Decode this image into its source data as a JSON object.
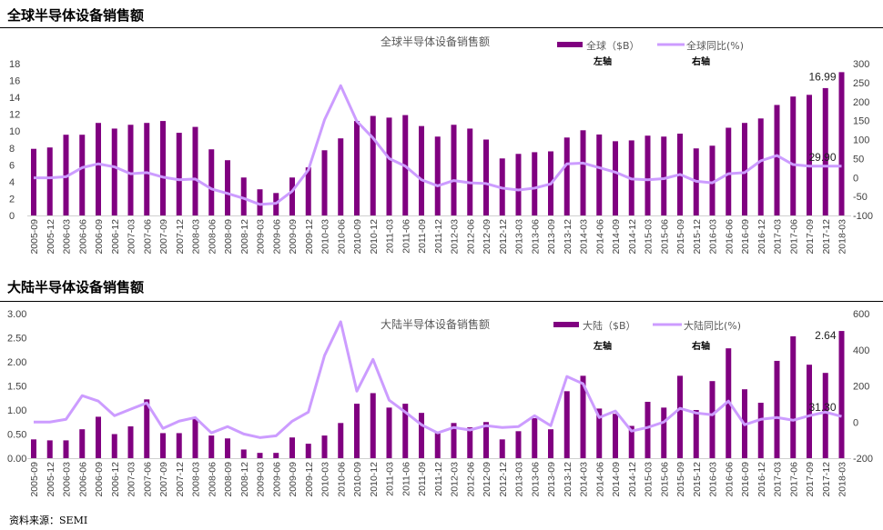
{
  "colors": {
    "bar": "#800080",
    "line": "#cc9cff",
    "axis": "#d0d0d0",
    "text": "#404040"
  },
  "source": "资料来源：SEMI",
  "chart_data": [
    {
      "type": "bar+line",
      "section_title": "全球半导体设备销售额",
      "title": "全球半导体设备销售额",
      "legend": {
        "bar": "全球（$B）",
        "line": "全球同比(%)",
        "placement": "top-right"
      },
      "axis_notes": {
        "left": "左轴",
        "right": "右轴"
      },
      "categories": [
        "2005-09",
        "2005-12",
        "2006-03",
        "2006-06",
        "2006-09",
        "2006-12",
        "2007-03",
        "2007-06",
        "2007-09",
        "2007-12",
        "2008-03",
        "2008-06",
        "2008-09",
        "2008-12",
        "2009-03",
        "2009-06",
        "2009-09",
        "2009-12",
        "2010-03",
        "2010-06",
        "2010-09",
        "2010-12",
        "2011-03",
        "2011-06",
        "2011-09",
        "2011-12",
        "2012-03",
        "2012-06",
        "2012-09",
        "2012-12",
        "2013-03",
        "2013-06",
        "2013-09",
        "2013-12",
        "2014-03",
        "2014-06",
        "2014-09",
        "2014-12",
        "2015-03",
        "2015-06",
        "2015-09",
        "2015-12",
        "2016-03",
        "2016-06",
        "2016-09",
        "2016-12",
        "2017-03",
        "2017-06",
        "2017-09",
        "2017-12",
        "2018-03"
      ],
      "bar_values": [
        7.9,
        8.06,
        9.57,
        9.57,
        10.97,
        10.3,
        10.75,
        10.97,
        11.2,
        9.8,
        10.5,
        7.84,
        6.55,
        4.5,
        3.1,
        2.66,
        4.5,
        5.7,
        7.73,
        9.14,
        11.2,
        11.8,
        11.6,
        11.9,
        10.6,
        9.35,
        10.75,
        10.3,
        9.0,
        6.76,
        7.3,
        7.5,
        7.6,
        9.24,
        10.1,
        9.6,
        8.8,
        8.9,
        9.46,
        9.35,
        9.7,
        7.95,
        8.27,
        10.4,
        10.97,
        11.5,
        13.1,
        14.1,
        14.3,
        15.1,
        16.99
      ],
      "line_values": [
        -1,
        -1,
        2,
        26,
        36,
        28,
        10,
        13,
        1,
        -6,
        -4,
        -30,
        -42,
        -55,
        -71,
        -68,
        -36,
        20,
        152,
        242,
        148,
        104,
        50,
        30,
        -6,
        -22,
        -8,
        -14,
        -16,
        -28,
        -33,
        -28,
        -17,
        36,
        38,
        26,
        14,
        -4,
        -6,
        -3,
        8,
        -10,
        -14,
        10,
        13,
        44,
        58,
        34,
        30,
        30,
        29.9
      ],
      "left_ylim": [
        0,
        18
      ],
      "left_ticks": [
        "0",
        "2",
        "4",
        "6",
        "8",
        "10",
        "12",
        "14",
        "16",
        "18"
      ],
      "right_ylim": [
        -100,
        300
      ],
      "right_ticks": [
        "-100",
        "-50",
        "0",
        "50",
        "100",
        "150",
        "200",
        "250",
        "300"
      ],
      "last_bar_label": "16.99",
      "last_line_label": "29.90"
    },
    {
      "type": "bar+line",
      "section_title": "大陆半导体设备销售额",
      "title": "大陆半导体设备销售额",
      "legend": {
        "bar": "大陆（$B）",
        "line": "大陆同比(%)",
        "placement": "top-right"
      },
      "axis_notes": {
        "left": "左轴",
        "right": "右轴"
      },
      "categories": [
        "2005-09",
        "2005-12",
        "2006-03",
        "2006-06",
        "2006-09",
        "2006-12",
        "2007-03",
        "2007-06",
        "2007-09",
        "2007-12",
        "2008-03",
        "2008-06",
        "2008-09",
        "2008-12",
        "2009-03",
        "2009-06",
        "2009-09",
        "2009-12",
        "2010-03",
        "2010-06",
        "2010-09",
        "2010-12",
        "2011-03",
        "2011-06",
        "2011-09",
        "2011-12",
        "2012-03",
        "2012-06",
        "2012-09",
        "2012-12",
        "2013-03",
        "2013-06",
        "2013-09",
        "2013-12",
        "2014-03",
        "2014-06",
        "2014-09",
        "2014-12",
        "2015-03",
        "2015-06",
        "2015-09",
        "2015-12",
        "2016-03",
        "2016-06",
        "2016-09",
        "2016-12",
        "2017-03",
        "2017-06",
        "2017-09",
        "2017-12",
        "2018-03"
      ],
      "bar_values": [
        0.39,
        0.37,
        0.37,
        0.6,
        0.86,
        0.5,
        0.66,
        1.22,
        0.52,
        0.52,
        0.81,
        0.47,
        0.41,
        0.18,
        0.11,
        0.11,
        0.43,
        0.3,
        0.47,
        0.73,
        1.13,
        1.35,
        1.05,
        1.13,
        0.94,
        0.52,
        0.73,
        0.64,
        0.75,
        0.39,
        0.56,
        0.83,
        0.6,
        1.39,
        1.71,
        1.03,
        0.92,
        0.67,
        1.17,
        1.05,
        1.71,
        1.0,
        1.6,
        2.28,
        1.43,
        1.15,
        2.02,
        2.53,
        1.94,
        1.77,
        2.64
      ],
      "line_values": [
        0,
        0,
        15,
        146,
        116,
        35,
        71,
        106,
        -35,
        5,
        25,
        -60,
        -25,
        -66,
        -86,
        -76,
        5,
        55,
        368,
        555,
        171,
        347,
        121,
        55,
        -15,
        -60,
        -30,
        -44,
        -20,
        -30,
        -25,
        35,
        -20,
        252,
        212,
        25,
        61,
        -50,
        -30,
        0,
        76,
        50,
        40,
        116,
        -15,
        15,
        25,
        10,
        35,
        55,
        31.3
      ],
      "left_ylim": [
        0,
        3
      ],
      "left_ticks": [
        "0.00",
        "0.50",
        "1.00",
        "1.50",
        "2.00",
        "2.50",
        "3.00"
      ],
      "right_ylim": [
        -200,
        600
      ],
      "right_ticks": [
        "-200",
        "0",
        "200",
        "400",
        "600"
      ],
      "last_bar_label": "2.64",
      "last_line_label": "31.30"
    }
  ]
}
